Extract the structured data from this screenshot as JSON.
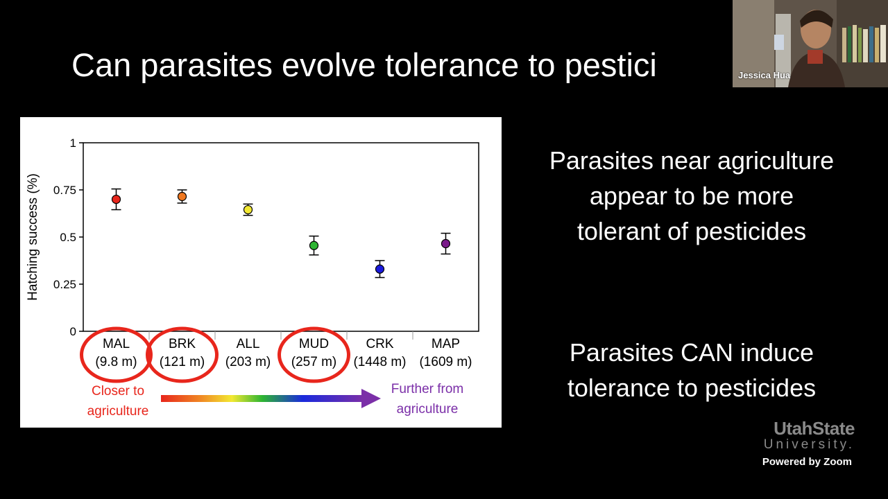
{
  "slide": {
    "title": "Can parasites evolve tolerance to pestici",
    "findings": [
      [
        "Parasites near agriculture",
        "appear to be more",
        "tolerant of pesticides"
      ],
      [
        "Parasites CAN induce",
        "tolerance to pesticides"
      ]
    ]
  },
  "chart_data": {
    "type": "scatter",
    "ylabel": "Hatching success (%)",
    "ylim": [
      0,
      1
    ],
    "yticks": [
      "0",
      "0.25",
      "0.5",
      "0.75",
      "1"
    ],
    "yticks_values": [
      0,
      0.25,
      0.5,
      0.75,
      1
    ],
    "categories": [
      "MAL",
      "BRK",
      "ALL",
      "MUD",
      "CRK",
      "MAP"
    ],
    "distances": [
      "(9.8 m)",
      "(121 m)",
      "(203 m)",
      "(257 m)",
      "(1448 m)",
      "(1609 m)"
    ],
    "values": [
      0.7,
      0.715,
      0.645,
      0.455,
      0.33,
      0.465
    ],
    "errors": [
      0.055,
      0.035,
      0.03,
      0.05,
      0.045,
      0.055
    ],
    "point_colors": [
      "#e8261c",
      "#f07820",
      "#f2e832",
      "#2db532",
      "#1a1adc",
      "#7a1a8a"
    ],
    "circled": [
      "MAL",
      "BRK",
      "MUD"
    ],
    "annotations": {
      "closer": [
        "Closer to",
        "agriculture"
      ],
      "further": [
        "Further from",
        "agriculture"
      ]
    },
    "grid": false
  },
  "call": {
    "participant_name": "Jessica Hua",
    "powered_by": "Powered by Zoom"
  },
  "branding": {
    "usu_top": "UtahState",
    "usu_bottom": "University."
  },
  "colors": {
    "background": "#000000",
    "closer_red": "#e8261c",
    "further_purple": "#7b2fa8"
  }
}
